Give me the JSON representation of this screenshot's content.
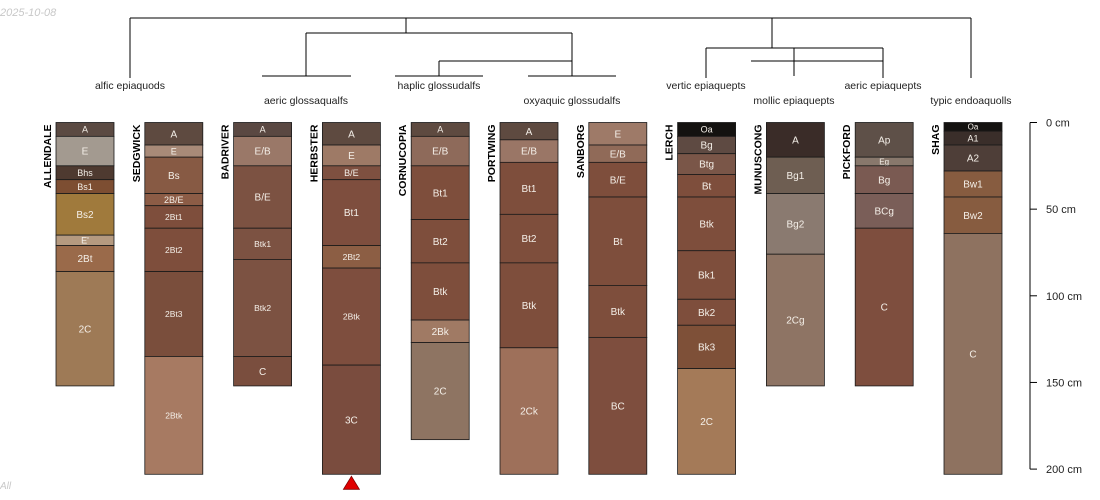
{
  "corner_date": "2025-10-08",
  "corner_note": "All",
  "depth_axis": {
    "unit": "cm",
    "ticks": [
      {
        "value": 0,
        "label": "0 cm"
      },
      {
        "value": 50,
        "label": "50 cm"
      },
      {
        "value": 100,
        "label": "100 cm"
      },
      {
        "value": 150,
        "label": "150 cm"
      },
      {
        "value": 200,
        "label": "200 cm"
      }
    ]
  },
  "group_labels": [
    "alfic epiaquods",
    "aeric glossaqualfs",
    "haplic glossudalfs",
    "oxyaquic glossudalfs",
    "vertic epiaquepts",
    "mollic epiaquepts",
    "aeric epiaquepts",
    "typic endoaquolls"
  ],
  "colors": {
    "dendrogram_line": "#000000",
    "horizon_border": "#1a1a1a",
    "marker": "#e00000"
  },
  "profiles": [
    {
      "name": "ALLENDALE",
      "horizons": [
        {
          "name": "A",
          "top": 0,
          "bottom": 8,
          "color": "#5b4a42"
        },
        {
          "name": "E",
          "top": 8,
          "bottom": 25,
          "color": "#a39a90"
        },
        {
          "name": "Bhs",
          "top": 25,
          "bottom": 33,
          "color": "#4e3a30"
        },
        {
          "name": "Bs1",
          "top": 33,
          "bottom": 41,
          "color": "#7d4e32"
        },
        {
          "name": "Bs2",
          "top": 41,
          "bottom": 65,
          "color": "#a07a3c"
        },
        {
          "name": "E'",
          "top": 65,
          "bottom": 71,
          "color": "#b59a80"
        },
        {
          "name": "2Bt",
          "top": 71,
          "bottom": 86,
          "color": "#9a6a4a"
        },
        {
          "name": "2C",
          "top": 86,
          "bottom": 152,
          "color": "#9e7a56"
        }
      ]
    },
    {
      "name": "SEDGWICK",
      "horizons": [
        {
          "name": "A",
          "top": 0,
          "bottom": 13,
          "color": "#5e4a40"
        },
        {
          "name": "E",
          "top": 13,
          "bottom": 20,
          "color": "#a88a78"
        },
        {
          "name": "Bs",
          "top": 20,
          "bottom": 41,
          "color": "#875a44"
        },
        {
          "name": "2B/E",
          "top": 41,
          "bottom": 48,
          "color": "#8c5c46"
        },
        {
          "name": "2Bt1",
          "top": 48,
          "bottom": 61,
          "color": "#7e4e3c"
        },
        {
          "name": "2Bt2",
          "top": 61,
          "bottom": 86,
          "color": "#7e4e3c"
        },
        {
          "name": "2Bt3",
          "top": 86,
          "bottom": 135,
          "color": "#7a4e3c"
        },
        {
          "name": "2Btk",
          "top": 135,
          "bottom": 203,
          "color": "#a77a62"
        }
      ]
    },
    {
      "name": "BADRIVER",
      "horizons": [
        {
          "name": "A",
          "top": 0,
          "bottom": 8,
          "color": "#5a4842"
        },
        {
          "name": "E/B",
          "top": 8,
          "bottom": 25,
          "color": "#9a7868"
        },
        {
          "name": "B/E",
          "top": 25,
          "bottom": 61,
          "color": "#7c5242"
        },
        {
          "name": "Btk1",
          "top": 61,
          "bottom": 79,
          "color": "#7c5242"
        },
        {
          "name": "Btk2",
          "top": 79,
          "bottom": 135,
          "color": "#7c5242"
        },
        {
          "name": "C",
          "top": 135,
          "bottom": 152,
          "color": "#7a4e3e"
        }
      ]
    },
    {
      "name": "HERBSTER",
      "horizons": [
        {
          "name": "A",
          "top": 0,
          "bottom": 13,
          "color": "#5e4a40"
        },
        {
          "name": "E",
          "top": 13,
          "bottom": 25,
          "color": "#9e7a66"
        },
        {
          "name": "B/E",
          "top": 25,
          "bottom": 33,
          "color": "#7e5040"
        },
        {
          "name": "Bt1",
          "top": 33,
          "bottom": 71,
          "color": "#7e4e3e"
        },
        {
          "name": "2Bt2",
          "top": 71,
          "bottom": 84,
          "color": "#8c5e44"
        },
        {
          "name": "2Btk",
          "top": 84,
          "bottom": 140,
          "color": "#7e4e3e"
        },
        {
          "name": "3C",
          "top": 140,
          "bottom": 203,
          "color": "#7a4c3e"
        }
      ]
    },
    {
      "name": "CORNUCOPIA",
      "horizons": [
        {
          "name": "A",
          "top": 0,
          "bottom": 8,
          "color": "#5e4a40"
        },
        {
          "name": "E/B",
          "top": 8,
          "bottom": 25,
          "color": "#8e6a5a"
        },
        {
          "name": "Bt1",
          "top": 25,
          "bottom": 56,
          "color": "#7e4e3c"
        },
        {
          "name": "Bt2",
          "top": 56,
          "bottom": 81,
          "color": "#7e4e3c"
        },
        {
          "name": "Btk",
          "top": 81,
          "bottom": 114,
          "color": "#7e4e3c"
        },
        {
          "name": "2Bk",
          "top": 114,
          "bottom": 127,
          "color": "#a07a64"
        },
        {
          "name": "2C",
          "top": 127,
          "bottom": 183,
          "color": "#8e7462"
        }
      ]
    },
    {
      "name": "PORTWING",
      "horizons": [
        {
          "name": "A",
          "top": 0,
          "bottom": 10,
          "color": "#5e4a40"
        },
        {
          "name": "E/B",
          "top": 10,
          "bottom": 23,
          "color": "#9a7666"
        },
        {
          "name": "Bt1",
          "top": 23,
          "bottom": 53,
          "color": "#7e4e3c"
        },
        {
          "name": "Bt2",
          "top": 53,
          "bottom": 81,
          "color": "#7e4e3c"
        },
        {
          "name": "Btk",
          "top": 81,
          "bottom": 130,
          "color": "#7e4e3c"
        },
        {
          "name": "2Ck",
          "top": 130,
          "bottom": 203,
          "color": "#9e705a"
        }
      ]
    },
    {
      "name": "SANBORG",
      "horizons": [
        {
          "name": "E",
          "top": 0,
          "bottom": 13,
          "color": "#9e7a68"
        },
        {
          "name": "E/B",
          "top": 13,
          "bottom": 23,
          "color": "#906a58"
        },
        {
          "name": "B/E",
          "top": 23,
          "bottom": 43,
          "color": "#7e4e3c"
        },
        {
          "name": "Bt",
          "top": 43,
          "bottom": 94,
          "color": "#7e4e3c"
        },
        {
          "name": "Btk",
          "top": 94,
          "bottom": 124,
          "color": "#7e4e3c"
        },
        {
          "name": "BC",
          "top": 124,
          "bottom": 203,
          "color": "#7e4e3e"
        }
      ]
    },
    {
      "name": "LERCH",
      "horizons": [
        {
          "name": "Oa",
          "top": 0,
          "bottom": 8,
          "color": "#141210"
        },
        {
          "name": "Bg",
          "top": 8,
          "bottom": 18,
          "color": "#5e4a42"
        },
        {
          "name": "Btg",
          "top": 18,
          "bottom": 30,
          "color": "#7a5648"
        },
        {
          "name": "Bt",
          "top": 30,
          "bottom": 43,
          "color": "#7e4e3c"
        },
        {
          "name": "Btk",
          "top": 43,
          "bottom": 74,
          "color": "#7e4e3c"
        },
        {
          "name": "Bk1",
          "top": 74,
          "bottom": 102,
          "color": "#7e4e3c"
        },
        {
          "name": "Bk2",
          "top": 102,
          "bottom": 117,
          "color": "#7e4e3c"
        },
        {
          "name": "Bk3",
          "top": 117,
          "bottom": 142,
          "color": "#7e5038"
        },
        {
          "name": "2C",
          "top": 142,
          "bottom": 203,
          "color": "#a47a58"
        }
      ]
    },
    {
      "name": "MUNUSCONG",
      "horizons": [
        {
          "name": "A",
          "top": 0,
          "bottom": 20,
          "color": "#3a2c28"
        },
        {
          "name": "Bg1",
          "top": 20,
          "bottom": 41,
          "color": "#6e5e52"
        },
        {
          "name": "Bg2",
          "top": 41,
          "bottom": 76,
          "color": "#8a7a70"
        },
        {
          "name": "2Cg",
          "top": 76,
          "bottom": 152,
          "color": "#8e7464"
        }
      ]
    },
    {
      "name": "PICKFORD",
      "horizons": [
        {
          "name": "Ap",
          "top": 0,
          "bottom": 20,
          "color": "#5e5048"
        },
        {
          "name": "Eg",
          "top": 20,
          "bottom": 25,
          "color": "#88786c"
        },
        {
          "name": "Bg",
          "top": 25,
          "bottom": 41,
          "color": "#7a5a52"
        },
        {
          "name": "BCg",
          "top": 41,
          "bottom": 61,
          "color": "#7a5e58"
        },
        {
          "name": "C",
          "top": 61,
          "bottom": 152,
          "color": "#7e4e3e"
        }
      ]
    },
    {
      "name": "SHAG",
      "horizons": [
        {
          "name": "Oa",
          "top": 0,
          "bottom": 5,
          "color": "#141210"
        },
        {
          "name": "A1",
          "top": 5,
          "bottom": 13,
          "color": "#3a2e2a"
        },
        {
          "name": "A2",
          "top": 13,
          "bottom": 28,
          "color": "#4e3e38"
        },
        {
          "name": "Bw1",
          "top": 28,
          "bottom": 43,
          "color": "#875c40"
        },
        {
          "name": "Bw2",
          "top": 43,
          "bottom": 64,
          "color": "#875c40"
        },
        {
          "name": "C",
          "top": 64,
          "bottom": 203,
          "color": "#8e7260"
        }
      ]
    }
  ]
}
